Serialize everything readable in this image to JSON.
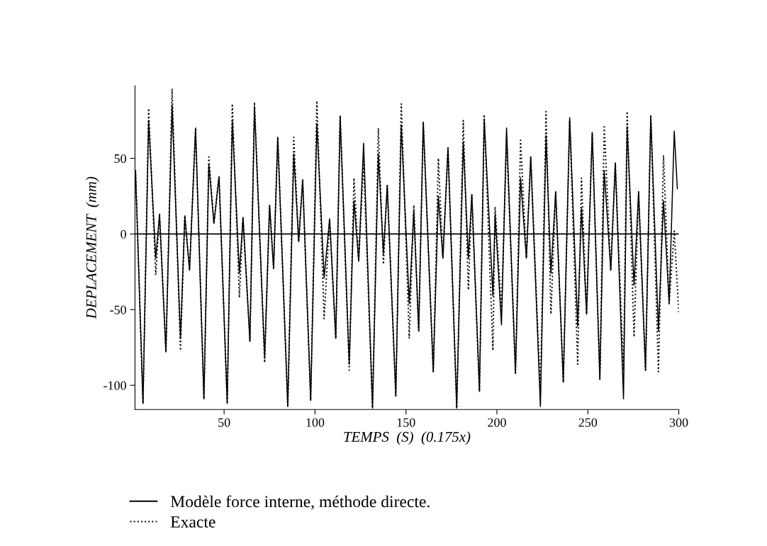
{
  "chart_data": {
    "type": "line",
    "xlabel": "TEMPS  (S)  (0.175x)",
    "ylabel": "DEPLACEMENT  (mm)",
    "xlim": [
      1,
      300
    ],
    "xticks": [
      50,
      100,
      150,
      200,
      250,
      300
    ],
    "ylim": [
      -116,
      98
    ],
    "yticks": [
      -100,
      -50,
      0,
      50
    ],
    "grid": false,
    "legend": "bottom left",
    "marker": "none",
    "ref_lines": [
      {
        "axis": "y",
        "value": 0,
        "color": "#000000",
        "line_style": "solid"
      }
    ],
    "series": [
      {
        "name": "Modèle force interne, méthode directe.",
        "color": "#000000",
        "line_style": "solid",
        "x": [
          1.3,
          5.4,
          8.5,
          12.4,
          14.5,
          18,
          21.4,
          26,
          28.4,
          31,
          34.3,
          38.9,
          41.6,
          44.4,
          47.2,
          51.7,
          54.5,
          58.4,
          60.4,
          64.2,
          66.7,
          72.3,
          75,
          77.2,
          79.5,
          85,
          88.3,
          91,
          93.2,
          97.6,
          101,
          105,
          108,
          111.4,
          113.8,
          118.8,
          121.4,
          124,
          126.7,
          131.6,
          134.8,
          137.6,
          139.7,
          144.4,
          147.4,
          151.8,
          154.3,
          157,
          159.5,
          165,
          167.8,
          170.3,
          173.1,
          177.9,
          181.5,
          184.3,
          186.2,
          190.4,
          193,
          197.8,
          199,
          202.5,
          205.3,
          210.2,
          213,
          216.2,
          218.6,
          223.9,
          227,
          229.7,
          232.3,
          236.5,
          240,
          244.4,
          246.5,
          249.3,
          252.4,
          256.6,
          259,
          262.6,
          265.1,
          269.6,
          271.6,
          275.4,
          277.9,
          281.7,
          284.6,
          288.8,
          291.6,
          294.7,
          297.5,
          299.2
        ],
        "values": [
          42,
          -112,
          75,
          -16,
          13,
          -78,
          85,
          -69,
          12,
          -24,
          70,
          -109,
          46,
          7,
          38,
          -112,
          75,
          -26,
          11,
          -71,
          84,
          -82,
          19,
          -23,
          64,
          -114,
          53,
          -5,
          36,
          -110,
          73,
          -29,
          10,
          -69,
          78,
          -86,
          22,
          -18,
          60,
          -115,
          53,
          -13,
          32,
          -107,
          72,
          -46,
          15,
          -64,
          74,
          -91,
          25,
          -16,
          57,
          -115,
          61,
          -16,
          26,
          -104,
          76,
          -41,
          13,
          -60,
          70,
          -92,
          37,
          -16,
          51,
          -114,
          65,
          -26,
          28,
          -98,
          77,
          -61,
          17,
          -53,
          67,
          -96,
          42,
          -24,
          47,
          -109,
          71,
          -34,
          28,
          -90,
          78,
          -64,
          22,
          -46,
          68,
          30
        ]
      },
      {
        "name": "Exacte",
        "color": "#000000",
        "line_style": "dotted",
        "x": [
          1.3,
          5.4,
          8.5,
          12.4,
          14.5,
          18,
          21.4,
          26,
          28.4,
          31,
          34.3,
          38.9,
          41.6,
          44.4,
          47.2,
          51.7,
          54.5,
          58.4,
          60.4,
          64.2,
          66.7,
          72.3,
          75,
          77.2,
          79.5,
          85,
          88.3,
          91,
          93.2,
          97.6,
          101,
          105,
          108,
          111.4,
          113.8,
          118.8,
          121.4,
          124,
          126.7,
          131.6,
          134.8,
          137.6,
          139.7,
          144.4,
          147.4,
          151.8,
          154.3,
          157,
          159.5,
          165,
          167.8,
          170.3,
          173.1,
          177.9,
          181.5,
          184.3,
          186.2,
          190.4,
          193,
          197.8,
          199,
          202.5,
          205.3,
          210.2,
          213,
          216.2,
          218.6,
          223.9,
          227,
          229.7,
          232.3,
          236.5,
          240,
          244.4,
          246.5,
          249.3,
          252.4,
          256.6,
          259,
          262.6,
          265.1,
          269.6,
          271.6,
          275.4,
          277.9,
          281.7,
          284.6,
          288.8,
          291.6,
          294.7,
          297.5,
          300
        ],
        "values": [
          42,
          -112,
          83,
          -27,
          13,
          -78,
          96,
          -77,
          12,
          -24,
          70,
          -109,
          51,
          7,
          38,
          -112,
          86,
          -42,
          11,
          -71,
          87,
          -85,
          19,
          -23,
          64,
          -114,
          64,
          -5,
          36,
          -110,
          88,
          -56,
          10,
          -69,
          78,
          -90,
          37,
          -18,
          48,
          -115,
          70,
          -20,
          32,
          -107,
          86,
          -69,
          19,
          -64,
          74,
          -91,
          50,
          -16,
          57,
          -115,
          75,
          -37,
          26,
          -104,
          79,
          -77,
          18,
          -50,
          63,
          -92,
          62,
          -16,
          51,
          -105,
          81,
          -53,
          28,
          -98,
          75,
          -86,
          37,
          -53,
          67,
          -96,
          72,
          -24,
          47,
          -90,
          81,
          -68,
          28,
          -90,
          78,
          -91,
          52,
          -46,
          2,
          -52
        ]
      }
    ]
  }
}
